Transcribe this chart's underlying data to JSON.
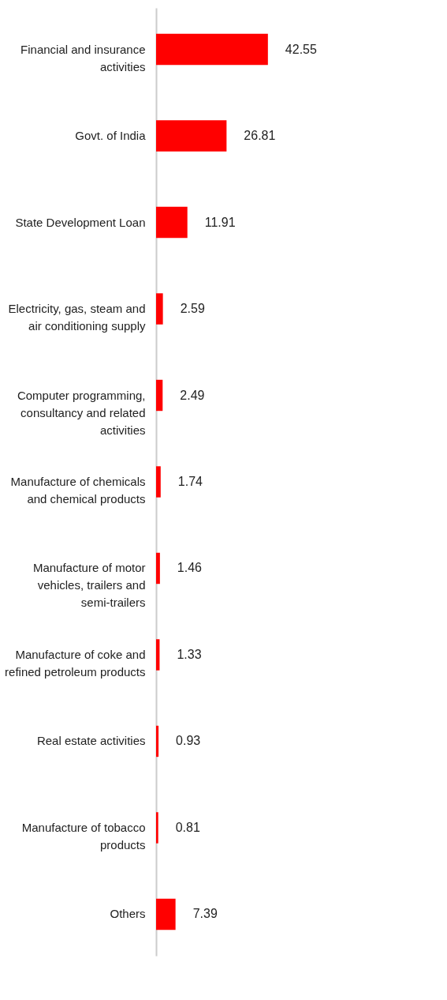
{
  "chart_data": {
    "type": "bar",
    "orientation": "horizontal",
    "color": "#ff0000",
    "data_labels": true,
    "categories": [
      "Financial and insurance activities",
      "Govt. of India",
      "State Development Loan",
      "Electricity, gas, steam and air conditioning supply",
      "Computer programming, consultancy and related activities",
      "Manufacture of chemicals and chemical products",
      "Manufacture of motor vehicles, trailers and semi-trailers",
      "Manufacture of coke and refined petroleum products",
      "Real estate activities",
      "Manufacture of tobacco products",
      "Others"
    ],
    "values": [
      42.55,
      26.81,
      11.91,
      2.59,
      2.49,
      1.74,
      1.46,
      1.33,
      0.93,
      0.81,
      7.39
    ]
  }
}
